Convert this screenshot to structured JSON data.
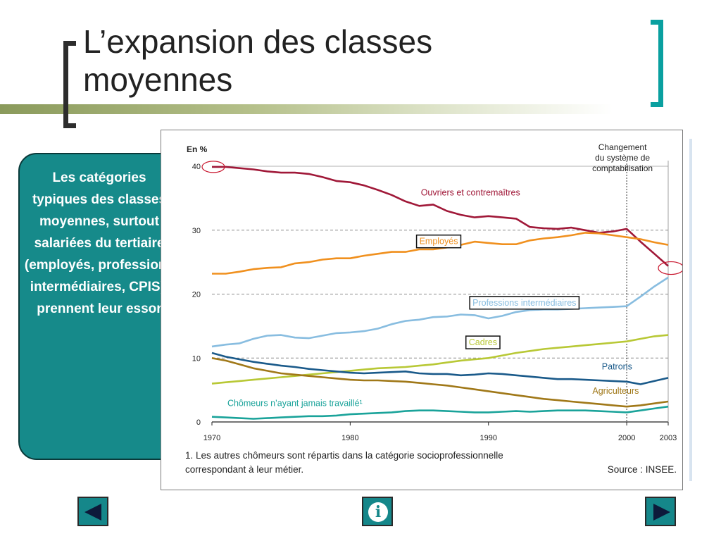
{
  "slide": {
    "title": "L’expansion des classes moyennes",
    "callout": "Les catégories typiques des classes moyennes, surtout salariées du tertiaire (employés, professions intermédiaires, CPIS), prennent leur essor"
  },
  "nav": {
    "prev_icon": "left-triangle",
    "info_icon": "info",
    "info_glyph": "i",
    "next_icon": "right-triangle"
  },
  "chart_data": {
    "type": "line",
    "unit_label": "En %",
    "annotation": "Changement du système de comptabilisation",
    "annotation_lines": [
      "Changement",
      "du système de",
      "comptabilisation"
    ],
    "footnote_lines": [
      "1. Les autres chômeurs sont répartis dans la catégorie socioprofessionnelle",
      "correspondant à leur métier."
    ],
    "source": "Source : INSEE.",
    "x_ticks": [
      "1970",
      "1980",
      "1990",
      "2000",
      "2003"
    ],
    "y_ticks": [
      "0",
      "10",
      "20",
      "30",
      "40"
    ],
    "ylim": [
      0,
      40
    ],
    "grid_lines_y": [
      10,
      20,
      30
    ],
    "break_year": 2000,
    "colors": {
      "ouvriers": "#a01838",
      "employes": "#f0901e",
      "professions": "#88bde0",
      "cadres": "#b8c835",
      "patrons": "#1a5a8a",
      "agriculteurs": "#a07818",
      "chomeurs": "#1aa39a",
      "highlight": "#c8142c"
    },
    "series": [
      {
        "name": "Ouvriers et contremaîtres",
        "key": "ouvriers",
        "label_x": 1988.7,
        "label_y": 35.4,
        "boxed": false,
        "x": [
          1970,
          1971,
          1972,
          1973,
          1974,
          1975,
          1976,
          1977,
          1978,
          1979,
          1980,
          1981,
          1982,
          1983,
          1984,
          1985,
          1986,
          1987,
          1988,
          1989,
          1990,
          1991,
          1992,
          1993,
          1994,
          1995,
          1996,
          1997,
          1998,
          1999,
          2000,
          2001,
          2002,
          2003
        ],
        "values": [
          39.9,
          39.9,
          39.7,
          39.5,
          39.2,
          39.0,
          39.0,
          38.8,
          38.3,
          37.7,
          37.5,
          37.0,
          36.3,
          35.5,
          34.5,
          33.8,
          34.0,
          33.0,
          32.4,
          32.0,
          32.2,
          32.0,
          31.8,
          30.5,
          30.3,
          30.2,
          30.4,
          30.0,
          29.6,
          29.8,
          30.2,
          28.2,
          26.3,
          24.4
        ]
      },
      {
        "name": "Employés",
        "key": "employes",
        "label_x": 1986.4,
        "label_y": 27.8,
        "boxed": true,
        "x": [
          1970,
          1971,
          1972,
          1973,
          1974,
          1975,
          1976,
          1977,
          1978,
          1979,
          1980,
          1981,
          1982,
          1983,
          1984,
          1985,
          1986,
          1987,
          1988,
          1989,
          1990,
          1991,
          1992,
          1993,
          1994,
          1995,
          1996,
          1997,
          1998,
          1999,
          2000,
          2001,
          2002,
          2003
        ],
        "values": [
          23.2,
          23.2,
          23.5,
          23.9,
          24.1,
          24.2,
          24.8,
          25.0,
          25.4,
          25.6,
          25.6,
          26.0,
          26.3,
          26.6,
          26.6,
          27.0,
          27.0,
          27.3,
          27.7,
          28.2,
          28.0,
          27.8,
          27.8,
          28.4,
          28.7,
          28.9,
          29.2,
          29.6,
          29.5,
          29.2,
          28.9,
          28.6,
          28.1,
          27.7
        ]
      },
      {
        "name": "Professions intermédiaires",
        "key": "professions",
        "label_x": 1992.6,
        "label_y": 18.2,
        "boxed": true,
        "x": [
          1970,
          1971,
          1972,
          1973,
          1974,
          1975,
          1976,
          1977,
          1978,
          1979,
          1980,
          1981,
          1982,
          1983,
          1984,
          1985,
          1986,
          1987,
          1988,
          1989,
          1990,
          1991,
          1992,
          1993,
          1994,
          1995,
          1996,
          1997,
          1998,
          1999,
          2000,
          2001,
          2002,
          2003
        ],
        "values": [
          11.8,
          12.1,
          12.3,
          13.0,
          13.5,
          13.6,
          13.2,
          13.1,
          13.5,
          13.9,
          14.0,
          14.2,
          14.6,
          15.3,
          15.8,
          16.0,
          16.4,
          16.5,
          16.8,
          16.7,
          16.2,
          16.6,
          17.2,
          17.5,
          17.6,
          17.6,
          17.7,
          17.8,
          17.9,
          18.0,
          18.1,
          19.6,
          21.2,
          22.6
        ]
      },
      {
        "name": "Cadres",
        "key": "cadres",
        "label_x": 1989.6,
        "label_y": 12.0,
        "boxed": true,
        "x": [
          1970,
          1971,
          1972,
          1973,
          1974,
          1975,
          1976,
          1977,
          1978,
          1979,
          1980,
          1981,
          1982,
          1983,
          1984,
          1985,
          1986,
          1987,
          1988,
          1989,
          1990,
          1991,
          1992,
          1993,
          1994,
          1995,
          1996,
          1997,
          1998,
          1999,
          2000,
          2001,
          2002,
          2003
        ],
        "values": [
          6.0,
          6.2,
          6.4,
          6.6,
          6.8,
          7.0,
          7.2,
          7.4,
          7.6,
          7.8,
          8.0,
          8.2,
          8.4,
          8.5,
          8.6,
          8.8,
          9.0,
          9.3,
          9.6,
          9.8,
          10.0,
          10.4,
          10.8,
          11.1,
          11.4,
          11.6,
          11.8,
          12.0,
          12.2,
          12.4,
          12.6,
          13.0,
          13.4,
          13.6
        ]
      },
      {
        "name": "Patrons",
        "key": "patrons",
        "label_x": 1999.3,
        "label_y": 8.2,
        "boxed": false,
        "x": [
          1970,
          1971,
          1972,
          1973,
          1974,
          1975,
          1976,
          1977,
          1978,
          1979,
          1980,
          1981,
          1982,
          1983,
          1984,
          1985,
          1986,
          1987,
          1988,
          1989,
          1990,
          1991,
          1992,
          1993,
          1994,
          1995,
          1996,
          1997,
          1998,
          1999,
          2000,
          2001,
          2002,
          2003
        ],
        "values": [
          10.8,
          10.2,
          9.8,
          9.4,
          9.1,
          8.8,
          8.6,
          8.3,
          8.1,
          7.9,
          7.7,
          7.6,
          7.7,
          7.8,
          7.9,
          7.6,
          7.5,
          7.5,
          7.3,
          7.4,
          7.6,
          7.5,
          7.3,
          7.1,
          6.9,
          6.7,
          6.7,
          6.6,
          6.5,
          6.4,
          6.3,
          5.9,
          6.4,
          6.9
        ]
      },
      {
        "name": "Agriculteurs",
        "key": "agriculteurs",
        "label_x": 1999.2,
        "label_y": 4.4,
        "boxed": false,
        "x": [
          1970,
          1971,
          1972,
          1973,
          1974,
          1975,
          1976,
          1977,
          1978,
          1979,
          1980,
          1981,
          1982,
          1983,
          1984,
          1985,
          1986,
          1987,
          1988,
          1989,
          1990,
          1991,
          1992,
          1993,
          1994,
          1995,
          1996,
          1997,
          1998,
          1999,
          2000,
          2001,
          2002,
          2003
        ],
        "values": [
          10.0,
          9.6,
          9.0,
          8.4,
          8.0,
          7.6,
          7.4,
          7.2,
          7.0,
          6.8,
          6.6,
          6.5,
          6.5,
          6.4,
          6.3,
          6.1,
          5.9,
          5.7,
          5.4,
          5.1,
          4.8,
          4.5,
          4.2,
          3.9,
          3.6,
          3.4,
          3.2,
          3.0,
          2.8,
          2.6,
          2.4,
          2.6,
          2.9,
          3.2
        ]
      },
      {
        "name": "Chômeurs n’ayant jamais travaillé¹",
        "key": "chomeurs",
        "label_x": 1976.0,
        "label_y": 2.5,
        "boxed": false,
        "x": [
          1970,
          1971,
          1972,
          1973,
          1974,
          1975,
          1976,
          1977,
          1978,
          1979,
          1980,
          1981,
          1982,
          1983,
          1984,
          1985,
          1986,
          1987,
          1988,
          1989,
          1990,
          1991,
          1992,
          1993,
          1994,
          1995,
          1996,
          1997,
          1998,
          1999,
          2000,
          2001,
          2002,
          2003
        ],
        "values": [
          0.8,
          0.7,
          0.6,
          0.5,
          0.6,
          0.7,
          0.8,
          0.9,
          0.9,
          1.0,
          1.2,
          1.3,
          1.4,
          1.5,
          1.7,
          1.8,
          1.8,
          1.7,
          1.6,
          1.5,
          1.5,
          1.6,
          1.7,
          1.6,
          1.7,
          1.8,
          1.8,
          1.8,
          1.7,
          1.6,
          1.5,
          1.8,
          2.1,
          2.4
        ]
      }
    ]
  }
}
